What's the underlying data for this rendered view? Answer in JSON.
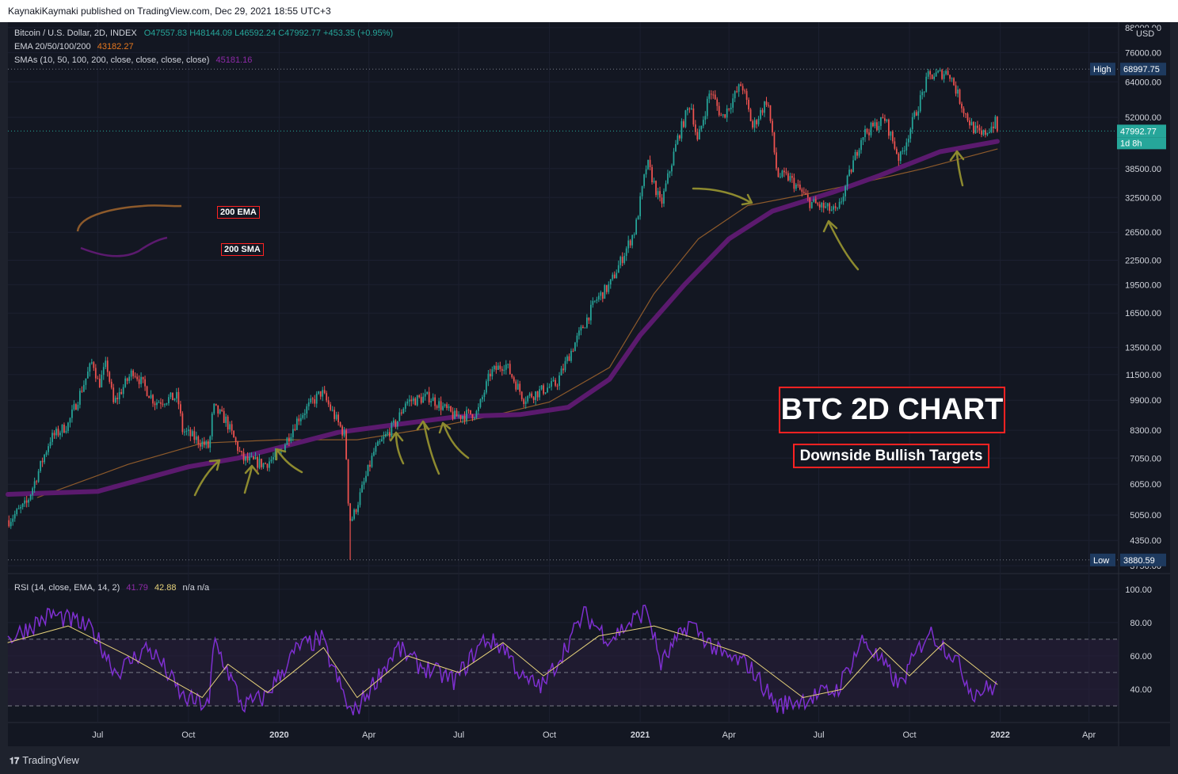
{
  "header": {
    "publish_text": "KaynakiKaymaki published on TradingView.com, Dec 29, 2021 18:55 UTC+3"
  },
  "legend": {
    "symbol": "Bitcoin / U.S. Dollar, 2D, INDEX",
    "ohlc": "O47557.83 H48144.09 L46592.24 C47992.77 +453.35 (+0.95%)",
    "ema_label": "EMA 20/50/100/200",
    "ema_value": "43182.27",
    "sma_label": "SMAs (10, 50, 100, 200, close, close, close, close)",
    "sma_value": "45181.16",
    "rsi_label": "RSI (14, close, EMA, 14, 2)",
    "rsi_value": "41.79",
    "rsi_signal": "42.88",
    "rsi_na": "n/a  n/a"
  },
  "annotations": {
    "ema_tag": "200 EMA",
    "sma_tag": "200 SMA",
    "title": "BTC 2D CHART",
    "subtitle": "Downside Bullish Targets"
  },
  "price_badges": {
    "currency": "USD",
    "high_tag": "High",
    "high_value": "68997.75",
    "last_value": "47992.77",
    "countdown": "1d 8h",
    "low_tag": "Low",
    "low_value": "3880.59"
  },
  "footer": {
    "brand": "TradingView"
  },
  "colors": {
    "background": "#131722",
    "up": "#26a69a",
    "down": "#ef5350",
    "sma200": "#5b1a6e",
    "ema200": "#8d5a2b",
    "rsi": "#7e2fd0",
    "rsi_signal": "#e6d27a",
    "arrows": "#8d8a2f",
    "last_price": "#26a69a"
  },
  "chart_data": [
    {
      "type": "candlestick",
      "title": "Bitcoin / U.S. Dollar, 2D, INDEX",
      "y_scale": "log",
      "y_ticks": [
        88000,
        76000,
        64000,
        52000,
        38500,
        32500,
        26500,
        22500,
        19500,
        16500,
        13500,
        11500,
        9900,
        8300,
        7050,
        6050,
        5050,
        4350,
        3750
      ],
      "y_tick_labels": [
        "88000.00",
        "76000.00",
        "64000.00",
        "52000.00",
        "38500.00",
        "32500.00",
        "26500.00",
        "22500.00",
        "19500.00",
        "16500.00",
        "13500.00",
        "11500.00",
        "9900.00",
        "8300.00",
        "7050.00",
        "6050.00",
        "5050.00",
        "4350.00",
        "3750.00"
      ],
      "x_tick_labels": [
        "Jul",
        "Oct",
        "2020",
        "Apr",
        "Jul",
        "Oct",
        "2021",
        "Apr",
        "Jul",
        "Oct",
        "2022",
        "Apr"
      ],
      "x_tick_bold": [
        false,
        false,
        true,
        false,
        false,
        false,
        true,
        false,
        false,
        false,
        true,
        false
      ],
      "x_tick_dates": [
        "2019-07-01",
        "2019-10-01",
        "2020-01-01",
        "2020-04-01",
        "2020-07-01",
        "2020-10-01",
        "2021-01-01",
        "2021-04-01",
        "2021-07-01",
        "2021-10-01",
        "2022-01-01",
        "2022-04-01"
      ],
      "x_range": [
        "2019-04-01",
        "2022-05-01"
      ],
      "high": 68997.75,
      "low": 3880.59,
      "last": 47992.77,
      "price_path": [
        [
          "2019-04-02",
          4900
        ],
        [
          "2019-04-20",
          5400
        ],
        [
          "2019-05-14",
          7900
        ],
        [
          "2019-06-01",
          8600
        ],
        [
          "2019-06-26",
          12500
        ],
        [
          "2019-07-02",
          10800
        ],
        [
          "2019-07-10",
          12300
        ],
        [
          "2019-07-17",
          9700
        ],
        [
          "2019-08-06",
          11800
        ],
        [
          "2019-08-28",
          9800
        ],
        [
          "2019-09-20",
          10100
        ],
        [
          "2019-09-25",
          8300
        ],
        [
          "2019-10-22",
          7500
        ],
        [
          "2019-10-26",
          9500
        ],
        [
          "2019-11-08",
          8800
        ],
        [
          "2019-11-25",
          7000
        ],
        [
          "2019-12-17",
          6800
        ],
        [
          "2020-01-01",
          7200
        ],
        [
          "2020-01-20",
          8900
        ],
        [
          "2020-02-13",
          10400
        ],
        [
          "2020-03-08",
          8000
        ],
        [
          "2020-03-12",
          4900
        ],
        [
          "2020-03-16",
          5000
        ],
        [
          "2020-04-06",
          7300
        ],
        [
          "2020-04-30",
          8800
        ],
        [
          "2020-05-08",
          9800
        ],
        [
          "2020-06-01",
          10100
        ],
        [
          "2020-06-27",
          9000
        ],
        [
          "2020-07-20",
          9200
        ],
        [
          "2020-08-02",
          11600
        ],
        [
          "2020-08-17",
          12300
        ],
        [
          "2020-09-05",
          10000
        ],
        [
          "2020-10-08",
          10900
        ],
        [
          "2020-10-21",
          12900
        ],
        [
          "2020-11-17",
          17800
        ],
        [
          "2020-12-01",
          19400
        ],
        [
          "2020-12-27",
          27000
        ],
        [
          "2021-01-08",
          40000
        ],
        [
          "2021-01-22",
          31000
        ],
        [
          "2021-02-08",
          46000
        ],
        [
          "2021-02-21",
          57000
        ],
        [
          "2021-02-28",
          45000
        ],
        [
          "2021-03-13",
          61000
        ],
        [
          "2021-03-25",
          51800
        ],
        [
          "2021-04-14",
          63500
        ],
        [
          "2021-04-25",
          49000
        ],
        [
          "2021-05-10",
          58000
        ],
        [
          "2021-05-20",
          37000
        ],
        [
          "2021-06-01",
          36500
        ],
        [
          "2021-06-22",
          31600
        ],
        [
          "2021-07-20",
          29800
        ],
        [
          "2021-08-14",
          47000
        ],
        [
          "2021-09-06",
          51500
        ],
        [
          "2021-09-21",
          40500
        ],
        [
          "2021-10-01",
          48000
        ],
        [
          "2021-10-20",
          66000
        ],
        [
          "2021-11-10",
          68000
        ],
        [
          "2021-11-26",
          53500
        ],
        [
          "2021-12-04",
          49000
        ],
        [
          "2021-12-13",
          46500
        ],
        [
          "2021-12-27",
          50500
        ],
        [
          "2021-12-29",
          47992
        ]
      ],
      "series": [
        {
          "name": "SMA 200",
          "points": [
            [
              "2019-04-01",
              5700
            ],
            [
              "2019-07-01",
              5800
            ],
            [
              "2019-10-01",
              6700
            ],
            [
              "2019-11-20",
              7050
            ],
            [
              "2020-01-01",
              7500
            ],
            [
              "2020-03-01",
              8200
            ],
            [
              "2020-05-01",
              8600
            ],
            [
              "2020-07-01",
              9000
            ],
            [
              "2020-09-01",
              9100
            ],
            [
              "2020-10-20",
              9500
            ],
            [
              "2020-12-01",
              11200
            ],
            [
              "2021-01-01",
              14500
            ],
            [
              "2021-02-15",
              19500
            ],
            [
              "2021-04-01",
              25500
            ],
            [
              "2021-05-15",
              30000
            ],
            [
              "2021-07-15",
              33500
            ],
            [
              "2021-09-01",
              37000
            ],
            [
              "2021-11-01",
              42500
            ],
            [
              "2021-12-29",
              45181
            ]
          ]
        },
        {
          "name": "EMA 200",
          "points": [
            [
              "2019-05-01",
              5600
            ],
            [
              "2019-08-01",
              6800
            ],
            [
              "2019-10-15",
              7700
            ],
            [
              "2020-01-01",
              7850
            ],
            [
              "2020-03-20",
              7850
            ],
            [
              "2020-06-01",
              8400
            ],
            [
              "2020-08-01",
              9000
            ],
            [
              "2020-10-01",
              9800
            ],
            [
              "2020-12-01",
              12000
            ],
            [
              "2021-01-15",
              18500
            ],
            [
              "2021-03-01",
              25500
            ],
            [
              "2021-04-20",
              31000
            ],
            [
              "2021-06-15",
              33000
            ],
            [
              "2021-08-15",
              35500
            ],
            [
              "2021-10-15",
              38500
            ],
            [
              "2021-12-29",
              43182
            ]
          ]
        }
      ]
    },
    {
      "type": "line",
      "title": "RSI (14, close, EMA, 14, 2)",
      "y_ticks": [
        100,
        80,
        60,
        40
      ],
      "y_tick_labels": [
        "100.00",
        "80.00",
        "60.00",
        "40.00"
      ],
      "bands": [
        30,
        50,
        70
      ],
      "last": 41.79,
      "signal_last": 42.88,
      "series": [
        {
          "name": "RSI",
          "points": [
            [
              "2019-04-01",
              70
            ],
            [
              "2019-05-15",
              85
            ],
            [
              "2019-06-10",
              80
            ],
            [
              "2019-06-26",
              75
            ],
            [
              "2019-07-20",
              50
            ],
            [
              "2019-08-20",
              65
            ],
            [
              "2019-09-01",
              58
            ],
            [
              "2019-09-25",
              35
            ],
            [
              "2019-10-22",
              30
            ],
            [
              "2019-10-27",
              70
            ],
            [
              "2019-11-25",
              30
            ],
            [
              "2019-12-17",
              35
            ],
            [
              "2020-01-20",
              65
            ],
            [
              "2020-02-13",
              70
            ],
            [
              "2020-03-12",
              28
            ],
            [
              "2020-03-16",
              25
            ],
            [
              "2020-04-30",
              65
            ],
            [
              "2020-05-20",
              55
            ],
            [
              "2020-06-27",
              45
            ],
            [
              "2020-07-27",
              70
            ],
            [
              "2020-08-17",
              65
            ],
            [
              "2020-09-05",
              45
            ],
            [
              "2020-09-25",
              42
            ],
            [
              "2020-11-05",
              85
            ],
            [
              "2020-12-01",
              70
            ],
            [
              "2021-01-08",
              88
            ],
            [
              "2021-01-22",
              55
            ],
            [
              "2021-02-20",
              80
            ],
            [
              "2021-03-25",
              60
            ],
            [
              "2021-04-20",
              55
            ],
            [
              "2021-05-20",
              30
            ],
            [
              "2021-06-22",
              35
            ],
            [
              "2021-07-20",
              40
            ],
            [
              "2021-08-15",
              70
            ],
            [
              "2021-09-21",
              42
            ],
            [
              "2021-10-20",
              75
            ],
            [
              "2021-11-15",
              60
            ],
            [
              "2021-12-04",
              38
            ],
            [
              "2021-12-29",
              41.79
            ]
          ]
        },
        {
          "name": "Signal",
          "points": [
            [
              "2019-04-01",
              68
            ],
            [
              "2019-06-01",
              78
            ],
            [
              "2019-08-01",
              60
            ],
            [
              "2019-10-15",
              35
            ],
            [
              "2019-11-10",
              55
            ],
            [
              "2019-12-20",
              38
            ],
            [
              "2020-02-15",
              65
            ],
            [
              "2020-03-20",
              35
            ],
            [
              "2020-05-10",
              60
            ],
            [
              "2020-07-01",
              50
            ],
            [
              "2020-08-15",
              68
            ],
            [
              "2020-09-25",
              48
            ],
            [
              "2020-11-20",
              72
            ],
            [
              "2021-01-15",
              78
            ],
            [
              "2021-03-01",
              70
            ],
            [
              "2021-04-20",
              60
            ],
            [
              "2021-06-15",
              35
            ],
            [
              "2021-07-25",
              40
            ],
            [
              "2021-09-01",
              65
            ],
            [
              "2021-10-01",
              48
            ],
            [
              "2021-11-05",
              68
            ],
            [
              "2021-12-29",
              42.88
            ]
          ]
        }
      ]
    }
  ]
}
